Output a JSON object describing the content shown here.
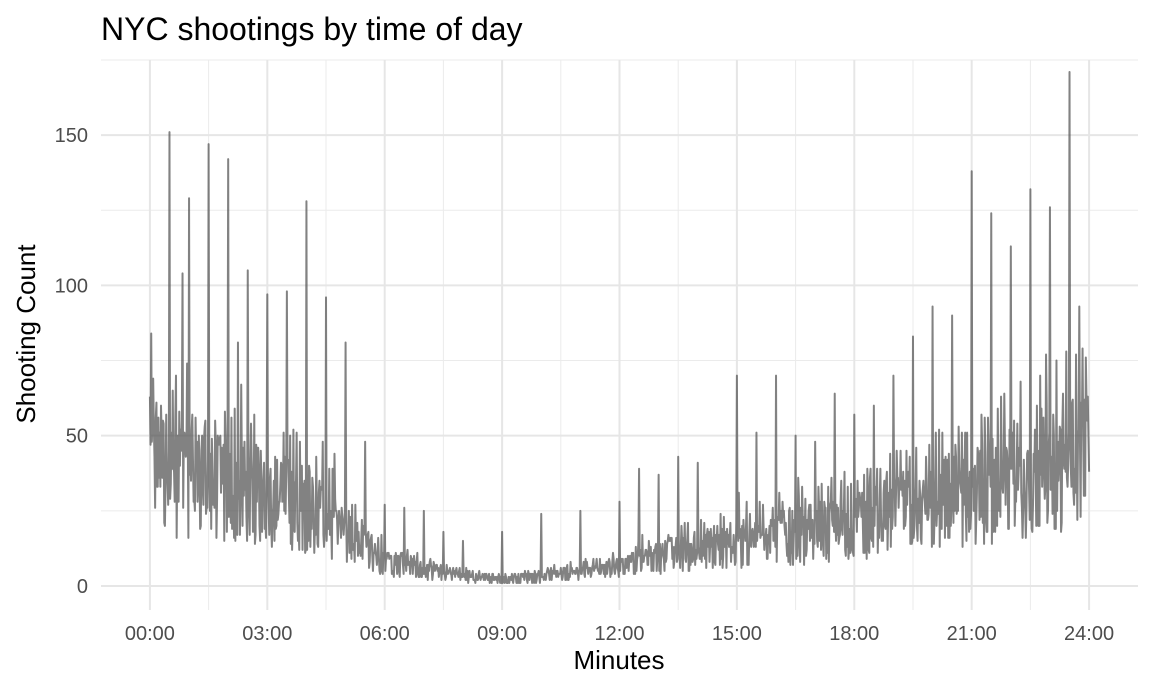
{
  "chart_data": {
    "type": "line",
    "title": "NYC shootings by time of day",
    "xlabel": "Minutes",
    "ylabel": "Shooting Count",
    "x_unit": "minutes since midnight",
    "xlim": [
      -75,
      1515
    ],
    "ylim": [
      -8,
      175
    ],
    "x_ticks": [
      0,
      180,
      360,
      540,
      720,
      900,
      1080,
      1260,
      1440
    ],
    "x_tick_labels": [
      "00:00",
      "03:00",
      "06:00",
      "09:00",
      "12:00",
      "15:00",
      "18:00",
      "21:00",
      "24:00"
    ],
    "y_ticks": [
      0,
      50,
      100,
      150
    ],
    "y_tick_labels": [
      "0",
      "50",
      "100",
      "150"
    ],
    "grid": true,
    "series": [
      {
        "color": "#4d4d4d",
        "envelope_minutes": [
          0,
          60,
          120,
          180,
          240,
          300,
          360,
          420,
          480,
          540,
          600,
          660,
          720,
          780,
          840,
          900,
          960,
          1020,
          1080,
          1140,
          1200,
          1260,
          1320,
          1380,
          1440
        ],
        "envelope_typical": [
          38,
          34,
          30,
          28,
          25,
          16,
          8,
          5,
          3,
          2,
          3,
          4,
          6,
          9,
          11,
          13,
          15,
          17,
          19,
          22,
          25,
          28,
          32,
          37,
          40
        ],
        "peaks": [
          [
            0,
            63
          ],
          [
            30,
            151
          ],
          [
            50,
            104
          ],
          [
            60,
            129
          ],
          [
            90,
            147
          ],
          [
            120,
            142
          ],
          [
            135,
            81
          ],
          [
            150,
            105
          ],
          [
            180,
            97
          ],
          [
            210,
            98
          ],
          [
            240,
            128
          ],
          [
            270,
            96
          ],
          [
            300,
            81
          ],
          [
            330,
            48
          ],
          [
            360,
            27
          ],
          [
            390,
            26
          ],
          [
            420,
            25
          ],
          [
            450,
            18
          ],
          [
            480,
            15
          ],
          [
            540,
            18
          ],
          [
            600,
            24
          ],
          [
            660,
            25
          ],
          [
            720,
            28
          ],
          [
            750,
            39
          ],
          [
            780,
            37
          ],
          [
            810,
            43
          ],
          [
            840,
            41
          ],
          [
            900,
            70
          ],
          [
            930,
            51
          ],
          [
            960,
            70
          ],
          [
            990,
            50
          ],
          [
            1020,
            48
          ],
          [
            1050,
            64
          ],
          [
            1080,
            57
          ],
          [
            1110,
            60
          ],
          [
            1140,
            70
          ],
          [
            1170,
            83
          ],
          [
            1200,
            93
          ],
          [
            1230,
            90
          ],
          [
            1260,
            138
          ],
          [
            1290,
            124
          ],
          [
            1320,
            113
          ],
          [
            1350,
            132
          ],
          [
            1380,
            126
          ],
          [
            1410,
            171
          ],
          [
            1425,
            93
          ],
          [
            1440,
            38
          ]
        ]
      }
    ]
  }
}
